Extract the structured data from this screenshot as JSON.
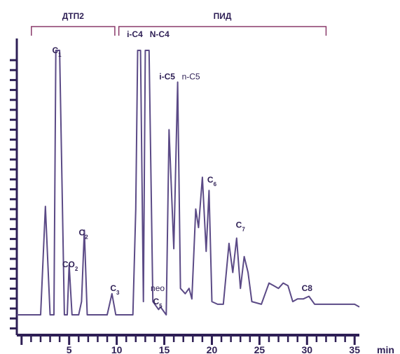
{
  "chart_data": {
    "type": "line",
    "xlabel": "",
    "ylabel": "",
    "x_unit": "min",
    "xlim": [
      -0.5,
      35.5
    ],
    "ylim": [
      0,
      100
    ],
    "x_ticks": [
      "5",
      "10",
      "15",
      "20",
      "25",
      "30",
      "35"
    ],
    "x_tick_values": [
      5,
      10,
      15,
      20,
      25,
      30,
      35
    ],
    "detector_ranges": [
      {
        "label": "ДТП2",
        "start": 0,
        "end": 9.8
      },
      {
        "label": "ПИД",
        "start": 10,
        "end": 32
      }
    ],
    "peak_labels": [
      {
        "text": "C",
        "sub": "1",
        "x": 3.7,
        "y": 99,
        "style": "bold"
      },
      {
        "text": "CO",
        "sub": "2",
        "x": 5.1,
        "y": 18,
        "style": "bold"
      },
      {
        "text": "C",
        "sub": "2",
        "x": 6.5,
        "y": 30,
        "style": "bold"
      },
      {
        "text": "C",
        "sub": "3",
        "x": 9.8,
        "y": 9,
        "style": "bold"
      },
      {
        "text": "i-C4",
        "sub": "",
        "x": 11.9,
        "y": 105,
        "style": "bold"
      },
      {
        "text": "N-C4",
        "sub": "",
        "x": 14.5,
        "y": 105,
        "style": "bold"
      },
      {
        "text": "neo",
        "sub": "",
        "x": 14.3,
        "y": 9,
        "style": "plain"
      },
      {
        "text": "C",
        "sub": "5",
        "x": 14.3,
        "y": 4,
        "style": "bold"
      },
      {
        "text": "i-C5",
        "sub": "",
        "x": 15.3,
        "y": 89,
        "style": "bold"
      },
      {
        "text": "n-C5",
        "sub": "",
        "x": 17.8,
        "y": 89,
        "style": "plain"
      },
      {
        "text": "C",
        "sub": "6",
        "x": 20.0,
        "y": 50,
        "style": "bold"
      },
      {
        "text": "C",
        "sub": "7",
        "x": 23.0,
        "y": 33,
        "style": "bold"
      },
      {
        "text": "C8",
        "sub": "",
        "x": 30.0,
        "y": 9,
        "style": "bold"
      }
    ],
    "series": [
      {
        "color": "#5b4a86",
        "points": [
          [
            -0.5,
            0
          ],
          [
            1.8,
            0
          ],
          [
            2.0,
            0
          ],
          [
            2.5,
            41
          ],
          [
            3.0,
            0
          ],
          [
            3.4,
            0
          ],
          [
            3.6,
            100
          ],
          [
            4.0,
            100
          ],
          [
            4.5,
            0
          ],
          [
            4.8,
            0
          ],
          [
            5.0,
            19
          ],
          [
            5.3,
            0
          ],
          [
            5.6,
            0
          ],
          [
            6.0,
            0
          ],
          [
            6.3,
            5
          ],
          [
            6.6,
            32
          ],
          [
            6.9,
            0
          ],
          [
            9.0,
            0
          ],
          [
            9.5,
            8
          ],
          [
            9.9,
            0
          ],
          [
            11.7,
            0
          ],
          [
            12.0,
            40
          ],
          [
            12.2,
            100
          ],
          [
            12.5,
            100
          ],
          [
            12.8,
            5
          ],
          [
            13.0,
            100
          ],
          [
            13.4,
            100
          ],
          [
            13.8,
            5
          ],
          [
            14.2,
            3
          ],
          [
            14.4,
            2
          ],
          [
            14.6,
            3
          ],
          [
            14.8,
            2
          ],
          [
            15.2,
            0
          ],
          [
            15.5,
            70
          ],
          [
            16.0,
            25
          ],
          [
            16.4,
            88
          ],
          [
            16.7,
            10
          ],
          [
            17.2,
            8
          ],
          [
            17.6,
            10
          ],
          [
            17.9,
            6
          ],
          [
            18.3,
            40
          ],
          [
            18.6,
            33
          ],
          [
            19.0,
            52
          ],
          [
            19.4,
            24
          ],
          [
            19.7,
            47
          ],
          [
            20.0,
            5
          ],
          [
            20.6,
            4
          ],
          [
            21.2,
            4
          ],
          [
            21.8,
            27
          ],
          [
            22.2,
            16
          ],
          [
            22.6,
            29
          ],
          [
            23.0,
            10
          ],
          [
            23.4,
            22
          ],
          [
            23.8,
            16
          ],
          [
            24.2,
            5
          ],
          [
            25.2,
            4
          ],
          [
            26.0,
            12
          ],
          [
            26.5,
            11
          ],
          [
            27.0,
            10
          ],
          [
            27.5,
            12
          ],
          [
            28.0,
            11
          ],
          [
            28.5,
            5
          ],
          [
            29.0,
            6
          ],
          [
            29.6,
            6
          ],
          [
            30.2,
            7
          ],
          [
            30.8,
            4
          ],
          [
            31.3,
            4
          ],
          [
            33.0,
            4
          ],
          [
            34.5,
            4
          ],
          [
            35.0,
            4
          ],
          [
            35.5,
            3
          ]
        ]
      }
    ]
  }
}
